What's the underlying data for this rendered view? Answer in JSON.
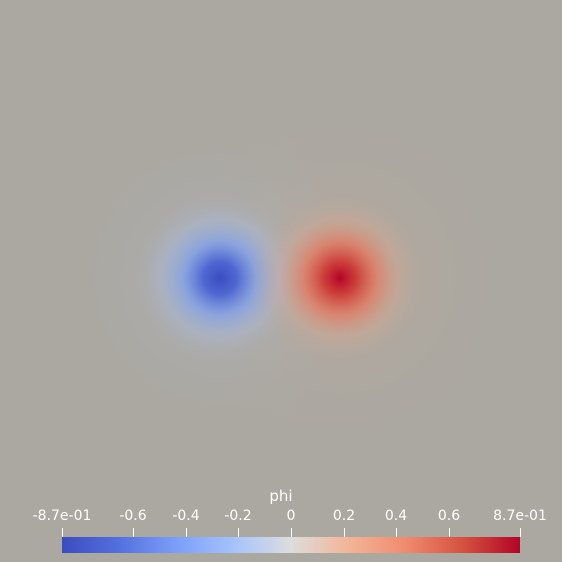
{
  "colorbar": {
    "title": "phi",
    "range": [
      -0.87,
      0.87
    ],
    "colormap": "Cool to Warm",
    "colors": [
      "#3b4cc0",
      "#dddddd",
      "#b40426"
    ],
    "ticks": [
      {
        "value": -0.87,
        "label": "-8.7e-01"
      },
      {
        "value": -0.6,
        "label": "-0.6"
      },
      {
        "value": -0.4,
        "label": "-0.4"
      },
      {
        "value": -0.2,
        "label": "-0.2"
      },
      {
        "value": 0,
        "label": "0"
      },
      {
        "value": 0.2,
        "label": "0.2"
      },
      {
        "value": 0.4,
        "label": "0.4"
      },
      {
        "value": 0.6,
        "label": "0.6"
      },
      {
        "value": 0.87,
        "label": "8.7e-01"
      }
    ]
  },
  "background": "#aba8a1"
}
